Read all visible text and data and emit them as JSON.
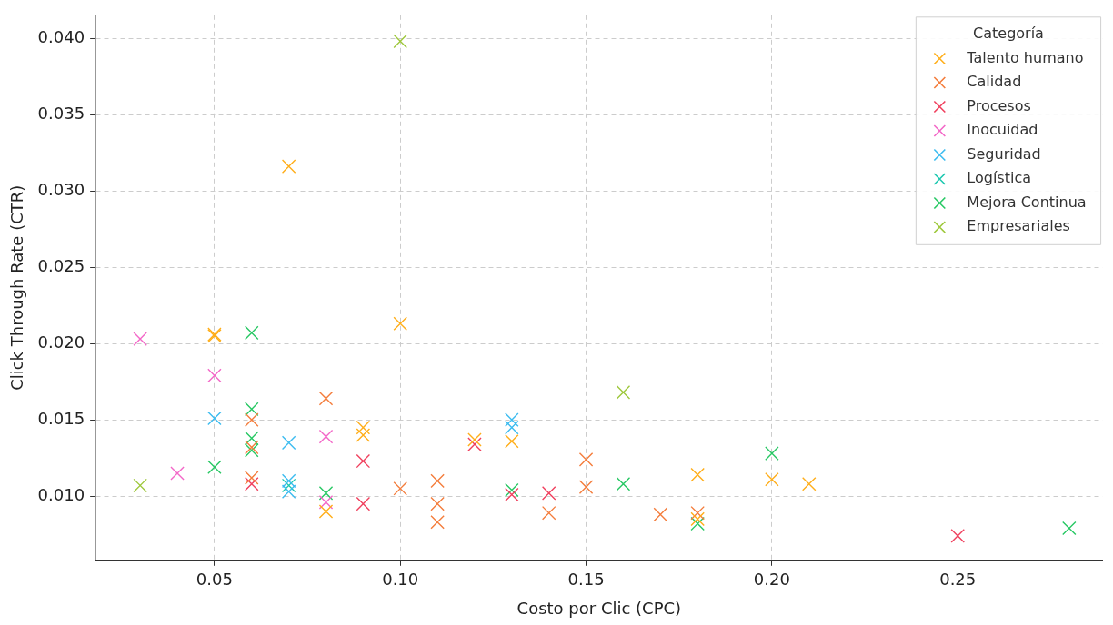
{
  "chart_data": {
    "type": "scatter",
    "xlabel": "Costo por Clic (CPC)",
    "ylabel": "Click Through Rate (CTR)",
    "legend_title": "Categoría",
    "legend": "top right",
    "grid": true,
    "marker": "cross",
    "xlim": [
      0.018,
      0.289
    ],
    "ylim": [
      0.0058,
      0.0415
    ],
    "xticks": [
      {
        "value": 0.05,
        "label": "0.05"
      },
      {
        "value": 0.1,
        "label": "0.10"
      },
      {
        "value": 0.15,
        "label": "0.15"
      },
      {
        "value": 0.2,
        "label": "0.20"
      },
      {
        "value": 0.25,
        "label": "0.25"
      }
    ],
    "yticks": [
      {
        "value": 0.01,
        "label": "0.010"
      },
      {
        "value": 0.015,
        "label": "0.015"
      },
      {
        "value": 0.02,
        "label": "0.020"
      },
      {
        "value": 0.025,
        "label": "0.025"
      },
      {
        "value": 0.03,
        "label": "0.030"
      },
      {
        "value": 0.035,
        "label": "0.035"
      },
      {
        "value": 0.04,
        "label": "0.040"
      }
    ],
    "series": [
      {
        "name": "Talento humano",
        "color": "#ffae1a",
        "x": [
          0.05,
          0.05,
          0.07,
          0.1,
          0.09,
          0.09,
          0.08,
          0.12,
          0.13,
          0.18,
          0.18,
          0.2,
          0.21
        ],
        "values": [
          0.0205,
          0.0206,
          0.0316,
          0.0213,
          0.0145,
          0.014,
          0.009,
          0.0137,
          0.0136,
          0.0114,
          0.0085,
          0.0111,
          0.0108
        ]
      },
      {
        "name": "Calidad",
        "color": "#f47d3c",
        "x": [
          0.06,
          0.06,
          0.06,
          0.08,
          0.1,
          0.11,
          0.11,
          0.11,
          0.14,
          0.15,
          0.15,
          0.17,
          0.18
        ],
        "values": [
          0.015,
          0.0132,
          0.0112,
          0.0164,
          0.0105,
          0.011,
          0.0095,
          0.0083,
          0.0089,
          0.0124,
          0.0106,
          0.0088,
          0.0089
        ]
      },
      {
        "name": "Procesos",
        "color": "#f0405e",
        "x": [
          0.06,
          0.09,
          0.09,
          0.12,
          0.13,
          0.14,
          0.25
        ],
        "values": [
          0.0108,
          0.0123,
          0.0095,
          0.0134,
          0.0101,
          0.0102,
          0.0074
        ]
      },
      {
        "name": "Inocuidad",
        "color": "#f368c8",
        "x": [
          0.03,
          0.04,
          0.05,
          0.08,
          0.08
        ],
        "values": [
          0.0203,
          0.0115,
          0.0179,
          0.0139,
          0.0096
        ]
      },
      {
        "name": "Seguridad",
        "color": "#3cbcf0",
        "x": [
          0.05,
          0.07,
          0.07,
          0.07,
          0.13,
          0.13
        ],
        "values": [
          0.0151,
          0.0135,
          0.011,
          0.0103,
          0.015,
          0.0145
        ]
      },
      {
        "name": "Logística",
        "color": "#1ec8b0",
        "x": [
          0.07
        ],
        "values": [
          0.0107
        ]
      },
      {
        "name": "Mejora Continua",
        "color": "#28c864",
        "x": [
          0.05,
          0.06,
          0.06,
          0.06,
          0.06,
          0.08,
          0.13,
          0.16,
          0.18,
          0.2,
          0.28
        ],
        "values": [
          0.0119,
          0.0207,
          0.0157,
          0.0138,
          0.013,
          0.0102,
          0.0104,
          0.0108,
          0.0082,
          0.0128,
          0.0079
        ]
      },
      {
        "name": "Empresariales",
        "color": "#9ec83c",
        "x": [
          0.03,
          0.1,
          0.16
        ],
        "values": [
          0.0107,
          0.0398,
          0.0168
        ]
      }
    ]
  }
}
